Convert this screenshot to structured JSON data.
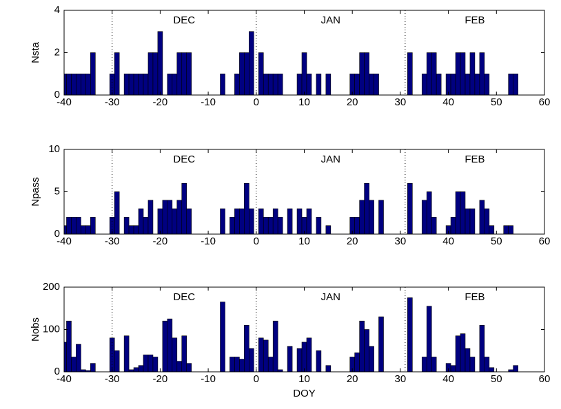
{
  "chart_data": [
    {
      "type": "bar",
      "ylabel": "Nsta",
      "color": "#000080",
      "edgecolor": "#000000",
      "xlim": [
        -40,
        60
      ],
      "xticks": [
        -40,
        -30,
        -20,
        -10,
        0,
        10,
        20,
        30,
        40,
        50,
        60
      ],
      "ylim": [
        0,
        4
      ],
      "yticks": [
        0,
        2,
        4
      ],
      "vlines": [
        -30,
        0,
        31
      ],
      "annotations": [
        "DEC",
        "JAN",
        "FEB"
      ],
      "x": [
        -40,
        -39,
        -38,
        -37,
        -36,
        -35,
        -34,
        -30,
        -29,
        -27,
        -26,
        -25,
        -24,
        -23,
        -22,
        -21,
        -20,
        -18,
        -17,
        -16,
        -15,
        -14,
        -7,
        -4,
        -3,
        -2,
        -1,
        1,
        2,
        3,
        4,
        5,
        9,
        10,
        11,
        13,
        15,
        20,
        21,
        22,
        23,
        24,
        25,
        32,
        35,
        36,
        37,
        38,
        40,
        41,
        42,
        43,
        44,
        45,
        46,
        47,
        48,
        53,
        54
      ],
      "values": [
        1,
        1,
        1,
        1,
        1,
        1,
        2,
        1,
        2,
        1,
        1,
        1,
        1,
        1,
        2,
        2,
        3,
        1,
        1,
        2,
        2,
        2,
        1,
        1,
        2,
        2,
        3,
        2,
        1,
        1,
        1,
        1,
        1,
        2,
        1,
        1,
        1,
        1,
        1,
        2,
        2,
        1,
        1,
        2,
        1,
        2,
        2,
        1,
        1,
        1,
        2,
        2,
        1,
        2,
        1,
        2,
        1,
        1,
        1
      ]
    },
    {
      "type": "bar",
      "ylabel": "Npass",
      "color": "#000080",
      "edgecolor": "#000000",
      "xlim": [
        -40,
        60
      ],
      "xticks": [
        -40,
        -30,
        -20,
        -10,
        0,
        10,
        20,
        30,
        40,
        50,
        60
      ],
      "ylim": [
        0,
        10
      ],
      "yticks": [
        0,
        5,
        10
      ],
      "vlines": [
        -30,
        0,
        31
      ],
      "annotations": [
        "DEC",
        "JAN",
        "FEB"
      ],
      "x": [
        -40,
        -39,
        -38,
        -37,
        -36,
        -35,
        -34,
        -30,
        -29,
        -27,
        -26,
        -25,
        -24,
        -23,
        -22,
        -20,
        -19,
        -18,
        -17,
        -16,
        -15,
        -14,
        -7,
        -5,
        -4,
        -3,
        -2,
        -1,
        1,
        2,
        3,
        4,
        5,
        7,
        9,
        10,
        11,
        13,
        15,
        20,
        21,
        22,
        23,
        24,
        26,
        32,
        35,
        36,
        37,
        40,
        41,
        42,
        43,
        44,
        45,
        47,
        48,
        49,
        52,
        53
      ],
      "values": [
        1,
        2,
        2,
        2,
        1,
        1,
        2,
        2,
        5,
        2,
        1,
        1,
        3,
        2,
        4,
        3,
        4,
        4,
        3,
        4,
        6,
        3,
        3,
        2,
        3,
        3,
        6,
        3,
        3,
        2,
        2,
        3,
        2,
        3,
        3,
        2,
        3,
        2,
        1,
        2,
        2,
        4,
        6,
        4,
        4,
        6,
        4,
        5,
        2,
        1,
        2,
        5,
        5,
        3,
        3,
        4,
        3,
        1,
        1,
        1
      ]
    },
    {
      "type": "bar",
      "ylabel": "Nobs",
      "xlabel": "DOY",
      "color": "#000080",
      "edgecolor": "#000000",
      "xlim": [
        -40,
        60
      ],
      "xticks": [
        -40,
        -30,
        -20,
        -10,
        0,
        10,
        20,
        30,
        40,
        50,
        60
      ],
      "ylim": [
        0,
        200
      ],
      "yticks": [
        0,
        100,
        200
      ],
      "vlines": [
        -30,
        0,
        31
      ],
      "annotations": [
        "DEC",
        "JAN",
        "FEB"
      ],
      "x": [
        -40,
        -39,
        -38,
        -37,
        -36,
        -35,
        -34,
        -30,
        -29,
        -27,
        -26,
        -25,
        -24,
        -23,
        -22,
        -21,
        -19,
        -18,
        -17,
        -16,
        -15,
        -14,
        -7,
        -5,
        -4,
        -3,
        -2,
        -1,
        1,
        2,
        3,
        4,
        5,
        7,
        9,
        10,
        11,
        13,
        15,
        20,
        21,
        22,
        23,
        24,
        26,
        32,
        35,
        36,
        37,
        40,
        41,
        42,
        43,
        44,
        45,
        47,
        48,
        49,
        53,
        54
      ],
      "values": [
        70,
        120,
        35,
        65,
        5,
        3,
        20,
        80,
        50,
        85,
        5,
        10,
        15,
        40,
        40,
        35,
        120,
        125,
        80,
        25,
        85,
        20,
        165,
        35,
        35,
        30,
        110,
        55,
        80,
        75,
        35,
        120,
        5,
        60,
        55,
        70,
        80,
        50,
        15,
        35,
        45,
        120,
        100,
        60,
        130,
        175,
        35,
        155,
        35,
        20,
        15,
        85,
        90,
        55,
        35,
        110,
        35,
        10,
        5,
        15
      ]
    }
  ]
}
